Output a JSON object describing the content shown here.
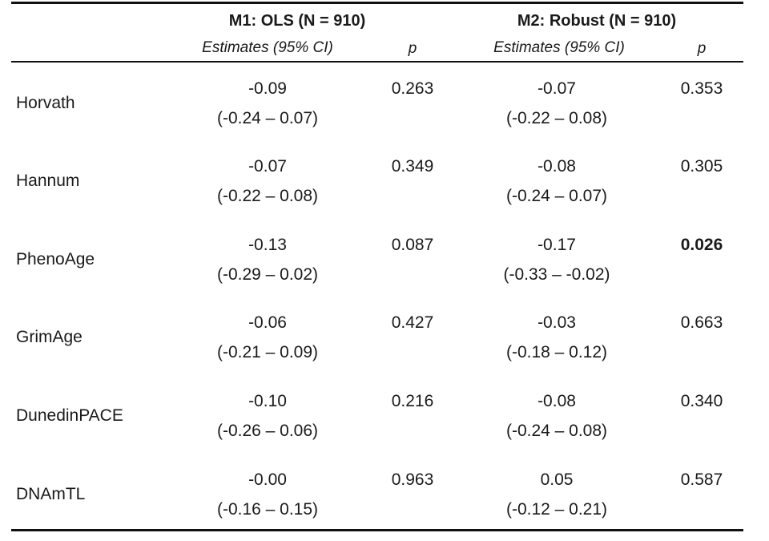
{
  "header": {
    "m1_title": "M1: OLS (N = 910)",
    "m2_title": "M2: Robust (N = 910)",
    "est_label": "Estimates (95% CI)",
    "p_label": "p"
  },
  "rows": [
    {
      "label": "Horvath",
      "m1": {
        "est": "-0.09",
        "ci": "(-0.24 – 0.07)",
        "p": "0.263"
      },
      "m2": {
        "est": "-0.07",
        "ci": "(-0.22 – 0.08)",
        "p": "0.353"
      }
    },
    {
      "label": "Hannum",
      "m1": {
        "est": "-0.07",
        "ci": "(-0.22 – 0.08)",
        "p": "0.349"
      },
      "m2": {
        "est": "-0.08",
        "ci": "(-0.24 – 0.07)",
        "p": "0.305"
      }
    },
    {
      "label": "PhenoAge",
      "m1": {
        "est": "-0.13",
        "ci": "(-0.29 – 0.02)",
        "p": "0.087"
      },
      "m2": {
        "est": "-0.17",
        "ci": "(-0.33 – -0.02)",
        "p": "0.026"
      }
    },
    {
      "label": "GrimAge",
      "m1": {
        "est": "-0.06",
        "ci": "(-0.21 – 0.09)",
        "p": "0.427"
      },
      "m2": {
        "est": "-0.03",
        "ci": "(-0.18 – 0.12)",
        "p": "0.663"
      }
    },
    {
      "label": "DunedinPACE",
      "m1": {
        "est": "-0.10",
        "ci": "(-0.26 – 0.06)",
        "p": "0.216"
      },
      "m2": {
        "est": "-0.08",
        "ci": "(-0.24 – 0.08)",
        "p": "0.340"
      }
    },
    {
      "label": "DNAmTL",
      "m1": {
        "est": "-0.00",
        "ci": "(-0.16 – 0.15)",
        "p": "0.963"
      },
      "m2": {
        "est": "0.05",
        "ci": "(-0.12 – 0.21)",
        "p": "0.587"
      }
    }
  ]
}
